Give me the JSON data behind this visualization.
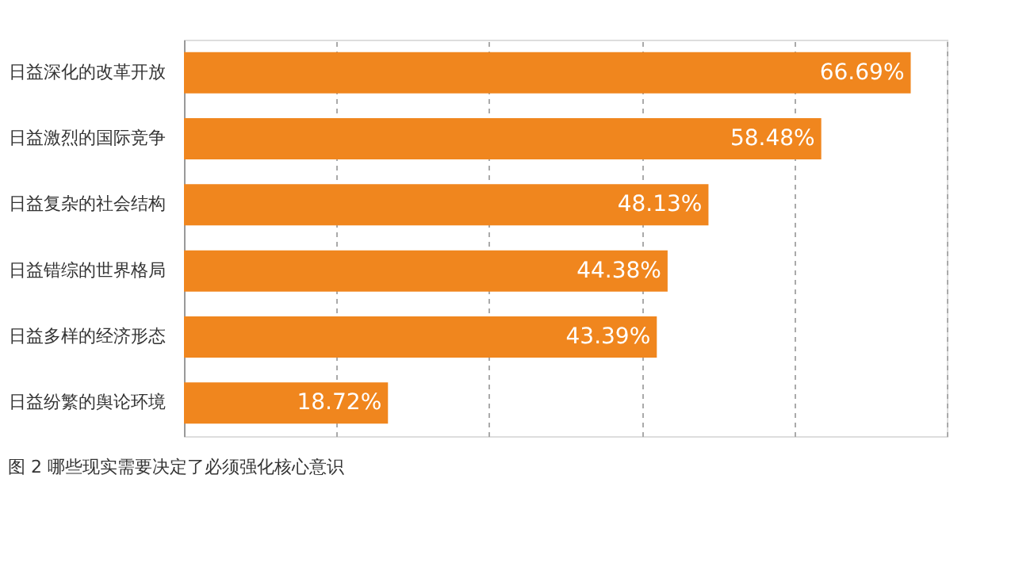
{
  "chart_data": {
    "type": "bar",
    "orientation": "horizontal",
    "categories": [
      "日益深化的改革开放",
      "日益激烈的国际竞争",
      "日益复杂的社会结构",
      "日益错综的世界格局",
      "日益多样的经济形态",
      "日益纷繁的舆论环境"
    ],
    "values": [
      66.69,
      58.48,
      48.13,
      44.38,
      43.39,
      18.72
    ],
    "value_labels": [
      "66.69%",
      "58.48%",
      "48.13%",
      "44.38%",
      "43.39%",
      "18.72%"
    ],
    "color": "#f0861e",
    "xlim": [
      0,
      70
    ],
    "xticks": [
      {
        "value": 0,
        "label": null
      },
      {
        "value": 14,
        "label": null
      },
      {
        "value": 28,
        "label": null
      },
      {
        "value": 42,
        "label": null
      },
      {
        "value": 56,
        "label": null
      },
      {
        "value": 70,
        "label": null
      }
    ],
    "grid": "x",
    "line_style": "dashed",
    "tick_labels": "y",
    "annotations": [
      "图 2  哪些现实需要决定了必须强化核心意识"
    ]
  }
}
